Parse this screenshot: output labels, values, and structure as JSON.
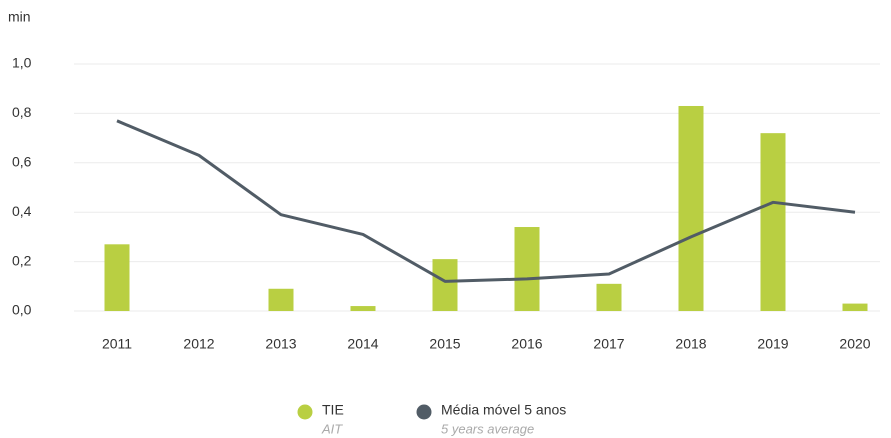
{
  "chart_data": {
    "type": "bar+line",
    "y_label": "min",
    "categories": [
      "2011",
      "2012",
      "2013",
      "2014",
      "2015",
      "2016",
      "2017",
      "2018",
      "2019",
      "2020"
    ],
    "series": [
      {
        "name": "TIE",
        "subtitle": "AIT",
        "type": "bar",
        "color": "#b9cf42",
        "values": [
          0.27,
          0,
          0.09,
          0.02,
          0.21,
          0.34,
          0.11,
          0.83,
          0.72,
          0.03
        ]
      },
      {
        "name": "Média móvel 5 anos",
        "subtitle": "5 years average",
        "type": "line",
        "color": "#515c66",
        "values": [
          0.77,
          0.63,
          0.39,
          0.31,
          0.12,
          0.13,
          0.15,
          0.3,
          0.44,
          0.4
        ]
      }
    ],
    "ylim": [
      0,
      1
    ],
    "yticks": [
      {
        "value": 0,
        "label": "0,0"
      },
      {
        "value": 0.2,
        "label": "0,2"
      },
      {
        "value": 0.4,
        "label": "0,4"
      },
      {
        "value": 0.6,
        "label": "0,6"
      },
      {
        "value": 0.8,
        "label": "0,8"
      },
      {
        "value": 1,
        "label": "1,0"
      }
    ],
    "grid": true,
    "legend": "bottom"
  }
}
